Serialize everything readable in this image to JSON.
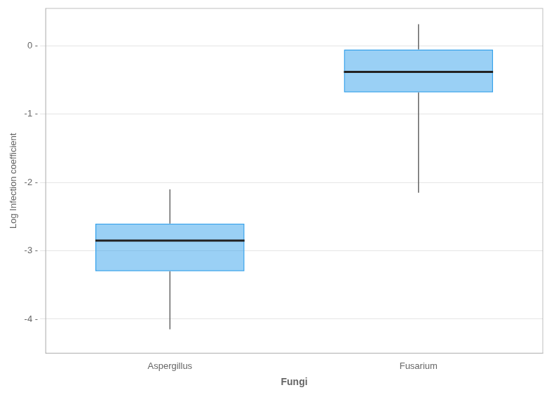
{
  "chart_data": {
    "type": "box",
    "categories": [
      "Aspergillus",
      "Fusarium"
    ],
    "xlabel": "Fungi",
    "ylabel": "Log Infection coefficient",
    "q1": [
      -3.3,
      -0.68
    ],
    "median": [
      -2.85,
      -0.38
    ],
    "q3": [
      -2.6,
      -0.05
    ],
    "whisker_low": [
      -4.15,
      -2.15
    ],
    "whisker_high": [
      -2.1,
      0.32
    ],
    "ylim": [
      -4.5,
      0.55
    ],
    "yticks": [
      {
        "value": 0,
        "label": "0 -"
      },
      {
        "value": -1,
        "label": "-1 -"
      },
      {
        "value": -2,
        "label": "-2 -"
      },
      {
        "value": -3,
        "label": "-3 -"
      },
      {
        "value": -4,
        "label": "-4 -"
      }
    ],
    "grid": true
  }
}
